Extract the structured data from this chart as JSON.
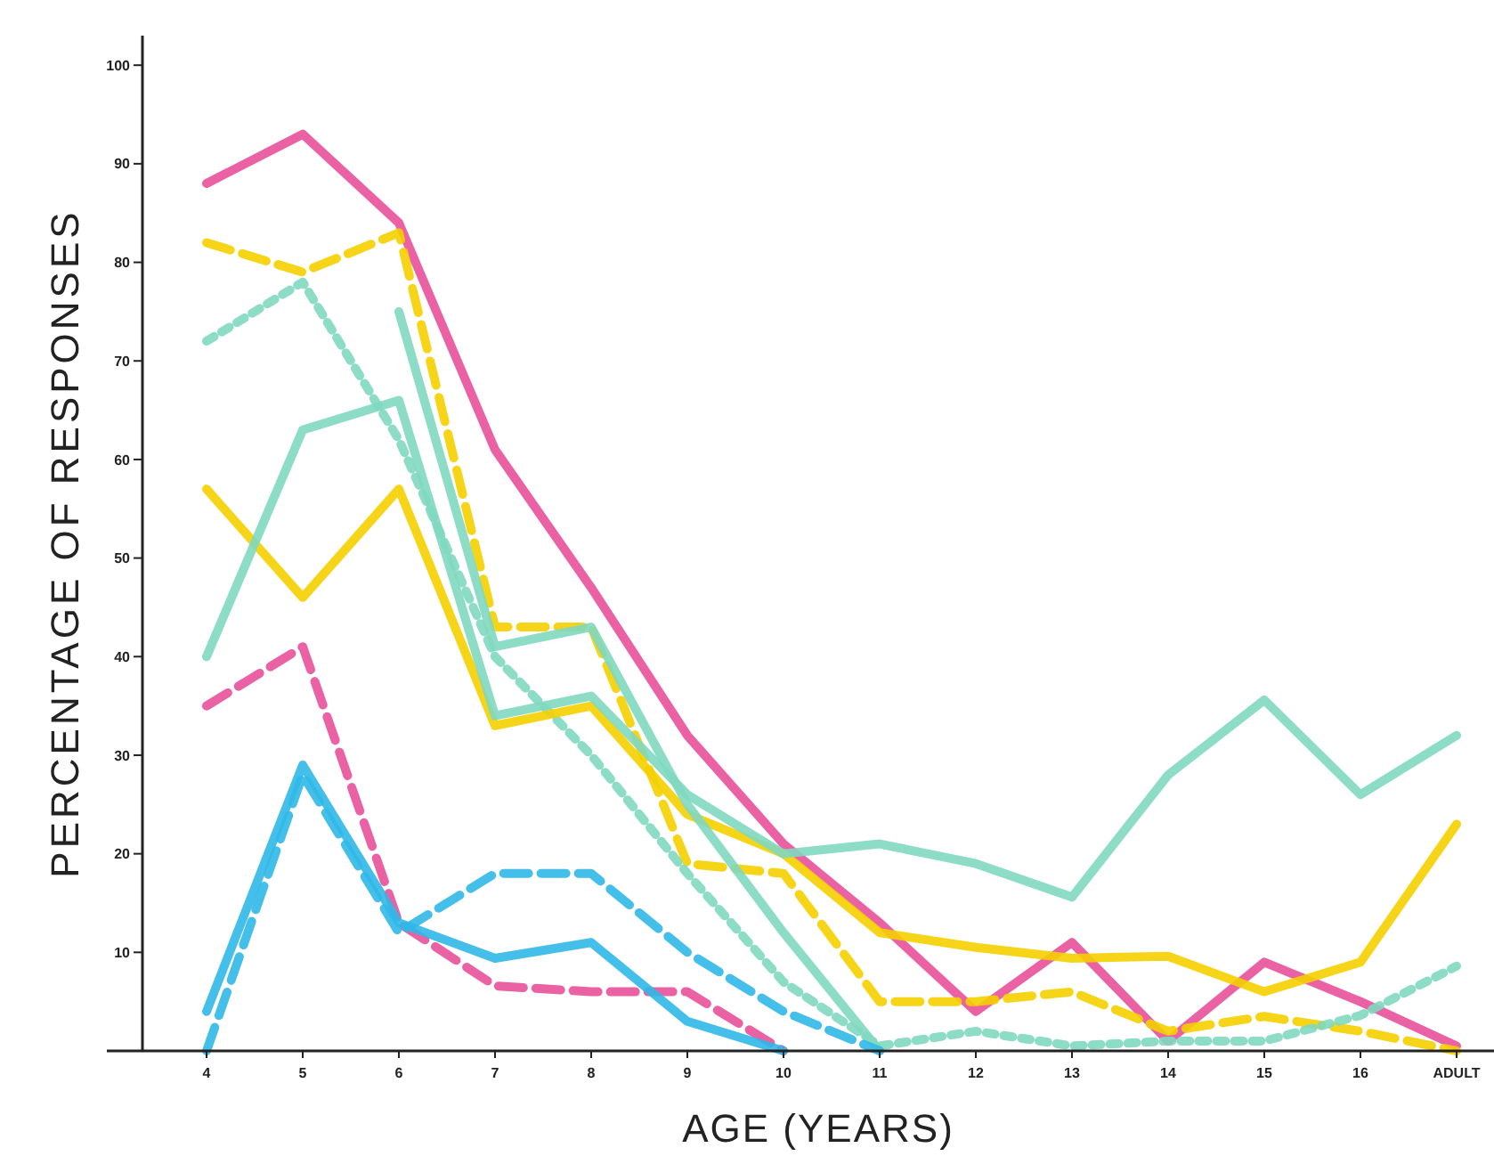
{
  "chart_data": {
    "type": "line",
    "xlabel": "AGE (YEARS)",
    "ylabel": "PERCENTAGE OF RESPONSES",
    "categories": [
      "4",
      "5",
      "6",
      "7",
      "8",
      "9",
      "10",
      "11",
      "12",
      "13",
      "14",
      "15",
      "16",
      "ADULT"
    ],
    "ylim": [
      0,
      103
    ],
    "yticks": [
      10,
      20,
      30,
      40,
      50,
      60,
      70,
      80,
      90,
      100
    ],
    "grid": false,
    "marker": "none",
    "series": [
      {
        "color": "#e8509a",
        "line_style": "solid",
        "values": [
          88,
          93,
          84,
          61,
          47,
          32,
          21,
          13,
          4,
          11,
          1,
          9,
          5,
          0.5
        ]
      },
      {
        "color": "#f5d000",
        "line_style": "dashed",
        "values": [
          82,
          79,
          83,
          43,
          43,
          19,
          18,
          5,
          5,
          6,
          2,
          3.5,
          2,
          0
        ]
      },
      {
        "color": "#7fd8c0",
        "line_style": "dotted",
        "values": [
          72,
          78,
          62,
          40,
          30,
          18,
          7,
          0.5,
          2,
          0.5,
          1,
          1,
          3.6,
          8.6
        ]
      },
      {
        "color": "#f5d000",
        "line_style": "solid",
        "values": [
          57,
          46,
          57,
          33,
          35,
          24,
          20,
          12,
          10.5,
          9.4,
          9.6,
          6,
          9,
          23
        ]
      },
      {
        "color": "#7fd8c0",
        "line_style": "solid",
        "values": [
          40,
          63,
          66,
          34,
          36,
          26,
          20,
          21,
          19,
          15.6,
          28,
          35.6,
          26,
          32
        ]
      },
      {
        "color": "#7fd8c0",
        "line_style": "solid",
        "values": [
          null,
          null,
          75,
          41,
          43,
          25,
          12,
          0,
          null,
          null,
          null,
          null,
          null,
          null
        ]
      },
      {
        "color": "#e8509a",
        "line_style": "dashed",
        "values": [
          35,
          41,
          13,
          6.6,
          6,
          6,
          0,
          null,
          null,
          null,
          null,
          null,
          null,
          null
        ]
      },
      {
        "color": "#30b8e8",
        "line_style": "solid",
        "values": [
          4,
          29,
          13,
          9.4,
          11,
          3,
          0,
          null,
          null,
          null,
          null,
          null,
          null,
          null
        ]
      },
      {
        "color": "#30b8e8",
        "line_style": "dashed",
        "values": [
          0,
          28,
          12,
          18,
          18,
          10,
          4,
          0,
          null,
          null,
          null,
          null,
          null,
          null
        ]
      }
    ]
  }
}
